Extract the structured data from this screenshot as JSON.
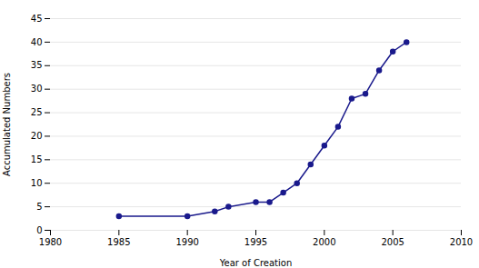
{
  "chart_data": {
    "type": "line",
    "x": [
      1985,
      1990,
      1992,
      1993,
      1995,
      1996,
      1997,
      1998,
      1999,
      2000,
      2001,
      2002,
      2003,
      2004,
      2005,
      2006
    ],
    "values": [
      3,
      3,
      4,
      5,
      6,
      6,
      8,
      10,
      14,
      18,
      22,
      28,
      29,
      34,
      38,
      40
    ],
    "color": "#1a1a8c",
    "marker": "circle",
    "xlabel": "Year of Creation",
    "ylabel": "Accumulated Numbers",
    "xlim": [
      1980,
      2010
    ],
    "ylim": [
      0,
      45
    ],
    "xticks": [
      1980,
      1985,
      1990,
      1995,
      2000,
      2005,
      2010
    ],
    "yticks": [
      0,
      5,
      10,
      15,
      20,
      25,
      30,
      35,
      40,
      45
    ],
    "grid": "y"
  }
}
